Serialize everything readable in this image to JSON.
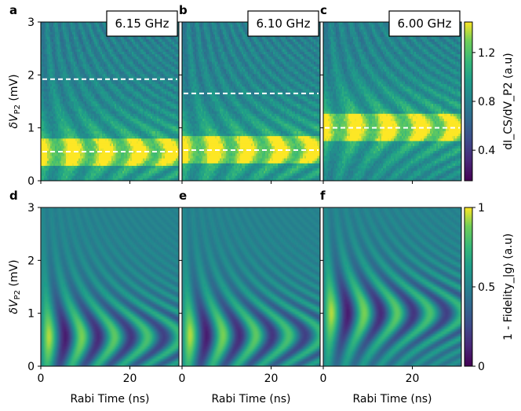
{
  "figure": {
    "x_axis_label": "Rabi Time (ns)",
    "y_axis_label_main": "δV",
    "y_axis_label_sub": "P2",
    "y_axis_label_unit": " (mV)",
    "x_ticks": [
      "0",
      "20"
    ],
    "y_ticks": [
      "0",
      "1",
      "2",
      "3"
    ]
  },
  "colorbar_top": {
    "label": "dI_CS/dV_P2 (a.u)",
    "ticks": [
      "0.4",
      "0.8",
      "1.2"
    ]
  },
  "colorbar_bottom": {
    "label": "1 - Fidelity_|g⟩ (a.u)",
    "ticks": [
      "0",
      "0.5",
      "1"
    ]
  },
  "panels": [
    {
      "letter": "a",
      "freq_label": "6.15 GHz"
    },
    {
      "letter": "b",
      "freq_label": "6.10 GHz"
    },
    {
      "letter": "c",
      "freq_label": "6.00 GHz"
    },
    {
      "letter": "d",
      "freq_label": ""
    },
    {
      "letter": "e",
      "freq_label": ""
    },
    {
      "letter": "f",
      "freq_label": ""
    }
  ],
  "chart_data": [
    {
      "type": "heatmap",
      "panel": "a",
      "title": "6.15 GHz",
      "xlabel": "",
      "ylabel": "δV_P2 (mV)",
      "xlim": [
        0,
        31
      ],
      "ylim": [
        0,
        3
      ],
      "colormap": "viridis",
      "resonance_lines_mV": [
        0.55,
        1.92
      ],
      "detuning_center_mV": 0.55
    },
    {
      "type": "heatmap",
      "panel": "b",
      "title": "6.10 GHz",
      "xlabel": "",
      "ylabel": "",
      "xlim": [
        0,
        31
      ],
      "ylim": [
        0,
        3
      ],
      "colormap": "viridis",
      "resonance_lines_mV": [
        0.58,
        1.65
      ],
      "detuning_center_mV": 0.58
    },
    {
      "type": "heatmap",
      "panel": "c",
      "title": "6.00 GHz",
      "xlabel": "",
      "ylabel": "",
      "xlim": [
        0,
        31
      ],
      "ylim": [
        0,
        3
      ],
      "colormap": "viridis",
      "resonance_lines_mV": [
        1.0
      ],
      "detuning_center_mV": 1.0
    },
    {
      "type": "heatmap",
      "panel": "d",
      "title": "",
      "xlabel": "Rabi Time (ns)",
      "ylabel": "δV_P2 (mV)",
      "xlim": [
        0,
        31
      ],
      "ylim": [
        0,
        3
      ],
      "colormap": "viridis",
      "detuning_center_mV": 0.55
    },
    {
      "type": "heatmap",
      "panel": "e",
      "title": "",
      "xlabel": "Rabi Time (ns)",
      "ylabel": "",
      "xlim": [
        0,
        31
      ],
      "ylim": [
        0,
        3
      ],
      "colormap": "viridis",
      "detuning_center_mV": 0.58
    },
    {
      "type": "heatmap",
      "panel": "f",
      "title": "",
      "xlabel": "Rabi Time (ns)",
      "ylabel": "",
      "xlim": [
        0,
        31
      ],
      "ylim": [
        0,
        3
      ],
      "colormap": "viridis",
      "detuning_center_mV": 1.0
    }
  ]
}
